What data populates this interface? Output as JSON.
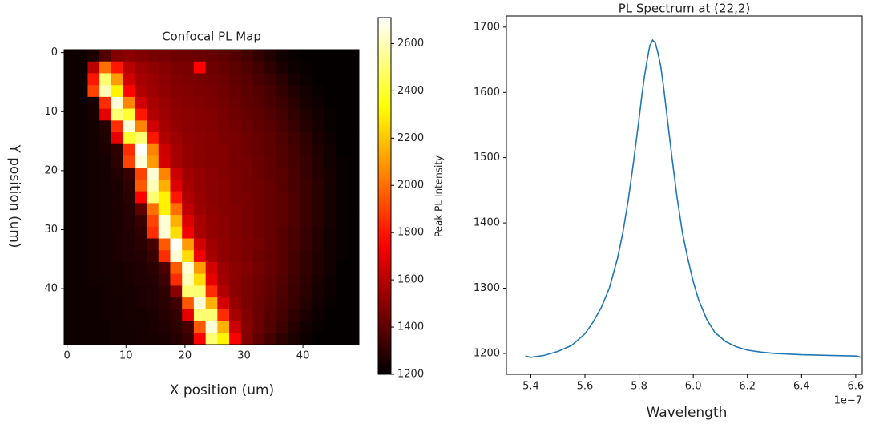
{
  "chart_data": [
    {
      "type": "heatmap",
      "title": "Confocal PL Map",
      "xlabel": "X position (um)",
      "ylabel": "Y position (um)",
      "colorbar_label": "Peak PL Intensity",
      "colormap": "hot",
      "clim": [
        1200,
        2710
      ],
      "cticks": [
        1200,
        1400,
        1600,
        1800,
        2000,
        2200,
        2400,
        2600
      ],
      "xlim": [
        -0.5,
        49.5
      ],
      "ylim": [
        49.5,
        -0.5
      ],
      "xticks": [
        0,
        10,
        20,
        30,
        40
      ],
      "yticks": [
        0,
        10,
        20,
        30,
        40
      ],
      "x": [
        0.5,
        2.5,
        4.5,
        6.5,
        8.5,
        10.5,
        12.5,
        14.5,
        16.5,
        18.5,
        20.5,
        22.5,
        24.5,
        26.5,
        28.5,
        30.5,
        32.5,
        34.5,
        36.5,
        38.5,
        40.5,
        42.5,
        44.5,
        46.5,
        48.5
      ],
      "y": [
        0.5,
        2.5,
        4.5,
        6.5,
        8.5,
        10.5,
        12.5,
        14.5,
        16.5,
        18.5,
        20.5,
        22.5,
        24.5,
        26.5,
        28.5,
        30.5,
        32.5,
        34.5,
        36.5,
        38.5,
        40.5,
        42.5,
        44.5,
        46.5,
        48.5
      ],
      "values": [
        [
          1230,
          1230,
          1260,
          1380,
          1480,
          1500,
          1480,
          1460,
          1450,
          1440,
          1440,
          1430,
          1420,
          1400,
          1380,
          1350,
          1310,
          1270,
          1240,
          1220,
          1210,
          1210,
          1210,
          1210,
          1210
        ],
        [
          1230,
          1230,
          1600,
          2000,
          1800,
          1600,
          1540,
          1510,
          1490,
          1470,
          1460,
          1750,
          1440,
          1420,
          1400,
          1370,
          1340,
          1300,
          1260,
          1230,
          1220,
          1210,
          1210,
          1210,
          1210
        ],
        [
          1230,
          1230,
          1800,
          2500,
          2100,
          1650,
          1560,
          1530,
          1500,
          1480,
          1470,
          1460,
          1450,
          1430,
          1410,
          1390,
          1360,
          1330,
          1290,
          1250,
          1230,
          1210,
          1210,
          1210,
          1210
        ],
        [
          1230,
          1230,
          1900,
          2600,
          2300,
          1750,
          1580,
          1540,
          1510,
          1490,
          1480,
          1470,
          1460,
          1440,
          1420,
          1400,
          1380,
          1350,
          1310,
          1270,
          1240,
          1220,
          1210,
          1210,
          1210
        ],
        [
          1230,
          1230,
          1250,
          1850,
          2650,
          2050,
          1650,
          1560,
          1530,
          1500,
          1490,
          1480,
          1470,
          1450,
          1430,
          1410,
          1390,
          1360,
          1330,
          1290,
          1250,
          1230,
          1210,
          1210,
          1210
        ],
        [
          1230,
          1230,
          1250,
          1700,
          2500,
          2400,
          1800,
          1580,
          1540,
          1510,
          1500,
          1490,
          1480,
          1460,
          1440,
          1420,
          1400,
          1380,
          1350,
          1310,
          1270,
          1240,
          1220,
          1210,
          1210
        ],
        [
          1230,
          1230,
          1240,
          1280,
          1850,
          2650,
          2050,
          1650,
          1560,
          1520,
          1500,
          1490,
          1480,
          1470,
          1450,
          1430,
          1410,
          1390,
          1360,
          1320,
          1280,
          1250,
          1220,
          1210,
          1210
        ],
        [
          1230,
          1230,
          1240,
          1270,
          1700,
          2400,
          2500,
          1800,
          1580,
          1540,
          1510,
          1500,
          1490,
          1470,
          1460,
          1440,
          1420,
          1400,
          1370,
          1340,
          1300,
          1260,
          1230,
          1210,
          1210
        ],
        [
          1230,
          1230,
          1240,
          1260,
          1300,
          1850,
          2700,
          2050,
          1650,
          1560,
          1520,
          1500,
          1490,
          1480,
          1460,
          1440,
          1420,
          1400,
          1380,
          1350,
          1310,
          1270,
          1240,
          1210,
          1210
        ],
        [
          1230,
          1230,
          1240,
          1250,
          1290,
          1900,
          2650,
          2100,
          1660,
          1560,
          1520,
          1500,
          1490,
          1480,
          1460,
          1450,
          1430,
          1410,
          1380,
          1350,
          1320,
          1280,
          1240,
          1220,
          1210
        ],
        [
          1230,
          1230,
          1240,
          1250,
          1270,
          1320,
          1900,
          2650,
          2050,
          1640,
          1550,
          1520,
          1500,
          1480,
          1470,
          1450,
          1430,
          1410,
          1390,
          1360,
          1320,
          1280,
          1250,
          1220,
          1210
        ],
        [
          1230,
          1230,
          1240,
          1250,
          1260,
          1300,
          1950,
          2600,
          2150,
          1680,
          1560,
          1520,
          1500,
          1490,
          1470,
          1450,
          1440,
          1420,
          1390,
          1360,
          1330,
          1290,
          1250,
          1220,
          1210
        ],
        [
          1230,
          1230,
          1240,
          1250,
          1260,
          1290,
          1750,
          2500,
          2300,
          1800,
          1580,
          1530,
          1500,
          1490,
          1470,
          1460,
          1440,
          1420,
          1400,
          1370,
          1330,
          1290,
          1250,
          1220,
          1210
        ],
        [
          1230,
          1230,
          1240,
          1250,
          1260,
          1280,
          1400,
          2000,
          2300,
          2000,
          1620,
          1540,
          1510,
          1490,
          1480,
          1460,
          1440,
          1420,
          1400,
          1370,
          1330,
          1290,
          1250,
          1220,
          1210
        ],
        [
          1230,
          1230,
          1240,
          1250,
          1260,
          1280,
          1320,
          1900,
          2650,
          2150,
          1680,
          1560,
          1520,
          1500,
          1480,
          1460,
          1440,
          1420,
          1400,
          1370,
          1330,
          1290,
          1250,
          1220,
          1210
        ],
        [
          1230,
          1230,
          1240,
          1250,
          1260,
          1270,
          1300,
          1850,
          2650,
          2250,
          1720,
          1570,
          1520,
          1500,
          1480,
          1460,
          1440,
          1420,
          1390,
          1360,
          1320,
          1280,
          1240,
          1220,
          1210
        ],
        [
          1230,
          1230,
          1240,
          1250,
          1260,
          1270,
          1290,
          1350,
          1950,
          2700,
          2100,
          1660,
          1550,
          1510,
          1490,
          1470,
          1450,
          1420,
          1390,
          1360,
          1320,
          1280,
          1240,
          1220,
          1210
        ],
        [
          1230,
          1230,
          1240,
          1250,
          1260,
          1270,
          1280,
          1320,
          1850,
          2650,
          2250,
          1720,
          1560,
          1510,
          1490,
          1470,
          1440,
          1420,
          1390,
          1350,
          1310,
          1270,
          1240,
          1220,
          1210
        ],
        [
          1230,
          1230,
          1240,
          1250,
          1250,
          1260,
          1270,
          1290,
          1360,
          1950,
          2650,
          2100,
          1660,
          1540,
          1500,
          1480,
          1450,
          1420,
          1390,
          1350,
          1310,
          1270,
          1240,
          1210,
          1210
        ],
        [
          1230,
          1230,
          1240,
          1240,
          1250,
          1260,
          1270,
          1280,
          1330,
          1850,
          2600,
          2250,
          1700,
          1550,
          1500,
          1470,
          1440,
          1410,
          1380,
          1340,
          1300,
          1260,
          1230,
          1210,
          1210
        ],
        [
          1230,
          1230,
          1230,
          1240,
          1250,
          1250,
          1260,
          1270,
          1300,
          1500,
          2500,
          2500,
          1850,
          1580,
          1500,
          1470,
          1440,
          1410,
          1370,
          1330,
          1290,
          1250,
          1230,
          1210,
          1210
        ],
        [
          1230,
          1230,
          1230,
          1240,
          1240,
          1250,
          1260,
          1270,
          1290,
          1340,
          1950,
          2650,
          2150,
          1660,
          1520,
          1470,
          1430,
          1400,
          1360,
          1320,
          1280,
          1240,
          1220,
          1210,
          1210
        ],
        [
          1230,
          1230,
          1230,
          1240,
          1240,
          1250,
          1250,
          1260,
          1280,
          1310,
          1700,
          2500,
          2500,
          1850,
          1560,
          1480,
          1430,
          1390,
          1350,
          1300,
          1260,
          1230,
          1210,
          1210,
          1210
        ],
        [
          1230,
          1230,
          1230,
          1230,
          1240,
          1240,
          1250,
          1260,
          1270,
          1290,
          1350,
          1950,
          2650,
          2150,
          1640,
          1490,
          1430,
          1380,
          1330,
          1280,
          1240,
          1220,
          1210,
          1210,
          1210
        ],
        [
          1230,
          1230,
          1230,
          1230,
          1240,
          1240,
          1250,
          1250,
          1260,
          1280,
          1320,
          1750,
          2500,
          2300,
          1750,
          1480,
          1410,
          1350,
          1300,
          1260,
          1230,
          1210,
          1210,
          1210,
          1210
        ]
      ]
    },
    {
      "type": "line",
      "title": "PL Spectrum at (22,2)",
      "xlabel": "Wavelength",
      "x_offset_label": "1e−7",
      "color": "#1f77b4",
      "xlim": [
        5.31e-07,
        6.624e-07
      ],
      "ylim": [
        1168,
        1717
      ],
      "xticks": [
        {
          "value": 5.4e-07,
          "label": "5.4"
        },
        {
          "value": 5.6e-07,
          "label": "5.6"
        },
        {
          "value": 5.8e-07,
          "label": "5.8"
        },
        {
          "value": 6e-07,
          "label": "6.0"
        },
        {
          "value": 6.2e-07,
          "label": "6.2"
        },
        {
          "value": 6.4e-07,
          "label": "6.4"
        },
        {
          "value": 6.6e-07,
          "label": "6.6"
        }
      ],
      "yticks": [
        1200,
        1300,
        1400,
        1500,
        1600,
        1700
      ],
      "x": [
        5.38e-07,
        5.4e-07,
        5.45e-07,
        5.5e-07,
        5.55e-07,
        5.6e-07,
        5.63e-07,
        5.66e-07,
        5.69e-07,
        5.72e-07,
        5.74e-07,
        5.76e-07,
        5.78e-07,
        5.8e-07,
        5.81e-07,
        5.82e-07,
        5.83e-07,
        5.84e-07,
        5.85e-07,
        5.86e-07,
        5.87e-07,
        5.88e-07,
        5.89e-07,
        5.9e-07,
        5.92e-07,
        5.94e-07,
        5.96e-07,
        5.98e-07,
        6e-07,
        6.02e-07,
        6.05e-07,
        6.08e-07,
        6.12e-07,
        6.16e-07,
        6.2e-07,
        6.25e-07,
        6.3e-07,
        6.4e-07,
        6.5e-07,
        6.6e-07,
        6.62e-07
      ],
      "values": [
        1196,
        1194,
        1197,
        1203,
        1212,
        1230,
        1248,
        1270,
        1300,
        1345,
        1385,
        1435,
        1495,
        1560,
        1595,
        1625,
        1650,
        1672,
        1680,
        1676,
        1660,
        1640,
        1610,
        1575,
        1505,
        1440,
        1385,
        1345,
        1310,
        1282,
        1252,
        1232,
        1218,
        1210,
        1205,
        1202,
        1200,
        1198,
        1197,
        1196,
        1194
      ]
    }
  ]
}
